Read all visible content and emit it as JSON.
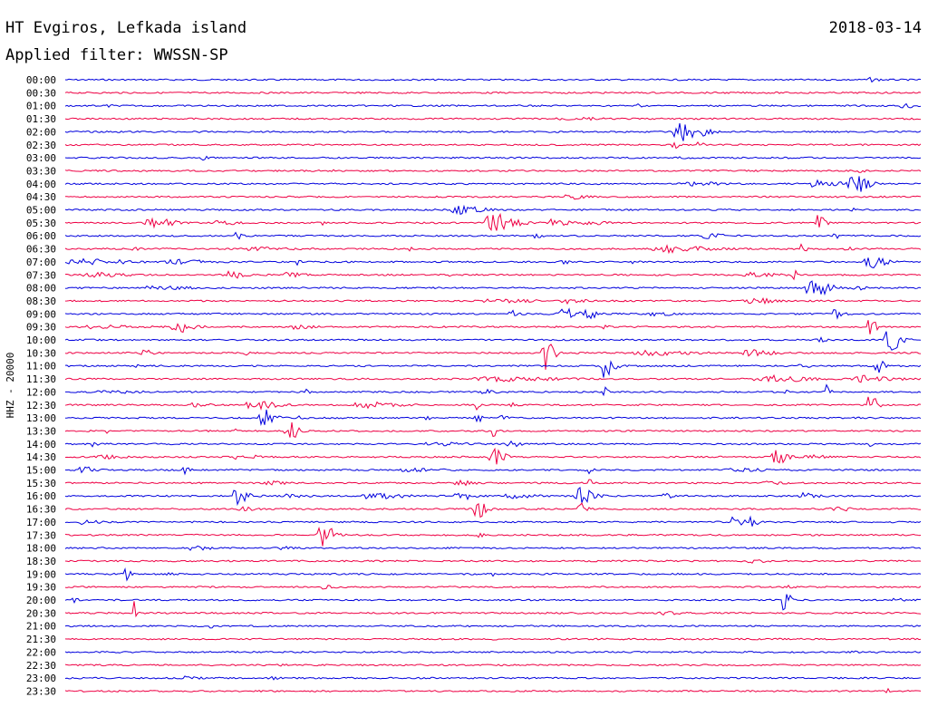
{
  "header": {
    "station": "HT Evgiros, Lefkada island",
    "date": "2018-03-14",
    "filter": "Applied filter: WWSSN-SP"
  },
  "channel_label": "HHZ - 20000",
  "colors": {
    "trace_a": "#0000dd",
    "trace_b": "#ee0044"
  },
  "traces": [
    {
      "time": "00:00",
      "events": [
        {
          "t": 0.94,
          "amp": 0.25,
          "w": 0.012
        }
      ]
    },
    {
      "time": "00:30",
      "events": []
    },
    {
      "time": "01:00",
      "events": [
        {
          "t": 0.05,
          "amp": 0.2,
          "w": 0.005
        },
        {
          "t": 0.67,
          "amp": 0.3,
          "w": 0.004
        },
        {
          "t": 0.98,
          "amp": 0.3,
          "w": 0.02
        }
      ]
    },
    {
      "time": "01:30",
      "events": [
        {
          "t": 0.58,
          "amp": 0.15,
          "w": 0.02
        },
        {
          "t": 0.61,
          "amp": 0.15,
          "w": 0.015
        }
      ]
    },
    {
      "time": "02:00",
      "events": [
        {
          "t": 0.72,
          "amp": 1.5,
          "w": 0.03
        }
      ]
    },
    {
      "time": "02:30",
      "events": [
        {
          "t": 0.71,
          "amp": 0.6,
          "w": 0.008
        },
        {
          "t": 0.74,
          "amp": 0.3,
          "w": 0.01
        }
      ]
    },
    {
      "time": "03:00",
      "events": [
        {
          "t": 0.16,
          "amp": 0.35,
          "w": 0.006
        },
        {
          "t": 0.72,
          "amp": 0.1,
          "w": 0.01
        }
      ]
    },
    {
      "time": "03:30",
      "events": [
        {
          "t": 0.31,
          "amp": 0.1,
          "w": 0.005
        },
        {
          "t": 0.93,
          "amp": 0.25,
          "w": 0.01
        }
      ]
    },
    {
      "time": "04:00",
      "events": [
        {
          "t": 0.73,
          "amp": 0.25,
          "w": 0.04
        },
        {
          "t": 0.88,
          "amp": 0.7,
          "w": 0.03
        },
        {
          "t": 0.92,
          "amp": 1.5,
          "w": 0.02
        }
      ]
    },
    {
      "time": "04:30",
      "events": [
        {
          "t": 0.59,
          "amp": 0.35,
          "w": 0.02
        }
      ]
    },
    {
      "time": "05:00",
      "events": [
        {
          "t": 0.46,
          "amp": 0.7,
          "w": 0.03
        },
        {
          "t": 0.92,
          "amp": 0.4,
          "w": 0.01
        }
      ]
    },
    {
      "time": "05:30",
      "events": [
        {
          "t": 0.1,
          "amp": 1.2,
          "w": 0.025
        },
        {
          "t": 0.18,
          "amp": 0.3,
          "w": 0.02
        },
        {
          "t": 0.3,
          "amp": 0.3,
          "w": 0.005
        },
        {
          "t": 0.5,
          "amp": 1.4,
          "w": 0.03
        },
        {
          "t": 0.57,
          "amp": 0.5,
          "w": 0.02
        },
        {
          "t": 0.61,
          "amp": 0.3,
          "w": 0.02
        },
        {
          "t": 0.88,
          "amp": 1.3,
          "w": 0.01
        }
      ]
    },
    {
      "time": "06:00",
      "events": [
        {
          "t": 0.2,
          "amp": 0.6,
          "w": 0.006
        },
        {
          "t": 0.55,
          "amp": 0.3,
          "w": 0.01
        },
        {
          "t": 0.75,
          "amp": 0.5,
          "w": 0.02
        },
        {
          "t": 0.9,
          "amp": 0.3,
          "w": 0.01
        }
      ]
    },
    {
      "time": "06:30",
      "events": [
        {
          "t": 0.08,
          "amp": 0.3,
          "w": 0.006
        },
        {
          "t": 0.22,
          "amp": 0.2,
          "w": 0.05
        },
        {
          "t": 0.4,
          "amp": 0.3,
          "w": 0.005
        },
        {
          "t": 0.7,
          "amp": 0.5,
          "w": 0.05
        },
        {
          "t": 0.86,
          "amp": 0.9,
          "w": 0.006
        },
        {
          "t": 0.91,
          "amp": 0.4,
          "w": 0.01
        }
      ]
    },
    {
      "time": "07:00",
      "events": [
        {
          "t": 0.02,
          "amp": 0.4,
          "w": 0.06
        },
        {
          "t": 0.13,
          "amp": 0.3,
          "w": 0.04
        },
        {
          "t": 0.27,
          "amp": 0.4,
          "w": 0.006
        },
        {
          "t": 0.58,
          "amp": 0.3,
          "w": 0.01
        },
        {
          "t": 0.66,
          "amp": 0.2,
          "w": 0.01
        },
        {
          "t": 0.94,
          "amp": 0.9,
          "w": 0.02
        }
      ]
    },
    {
      "time": "07:30",
      "events": [
        {
          "t": 0.03,
          "amp": 0.3,
          "w": 0.04
        },
        {
          "t": 0.19,
          "amp": 0.6,
          "w": 0.02
        },
        {
          "t": 0.26,
          "amp": 0.3,
          "w": 0.02
        },
        {
          "t": 0.45,
          "amp": 0.2,
          "w": 0.006
        },
        {
          "t": 0.8,
          "amp": 0.3,
          "w": 0.03
        },
        {
          "t": 0.85,
          "amp": 0.9,
          "w": 0.006
        }
      ]
    },
    {
      "time": "08:00",
      "events": [
        {
          "t": 0.1,
          "amp": 0.2,
          "w": 0.05
        },
        {
          "t": 0.87,
          "amp": 1.6,
          "w": 0.025
        },
        {
          "t": 0.92,
          "amp": 0.3,
          "w": 0.02
        }
      ]
    },
    {
      "time": "08:30",
      "events": [
        {
          "t": 0.5,
          "amp": 0.2,
          "w": 0.05
        },
        {
          "t": 0.58,
          "amp": 0.4,
          "w": 0.03
        },
        {
          "t": 0.8,
          "amp": 0.4,
          "w": 0.03
        }
      ]
    },
    {
      "time": "09:00",
      "events": [
        {
          "t": 0.52,
          "amp": 0.6,
          "w": 0.01
        },
        {
          "t": 0.58,
          "amp": 0.8,
          "w": 0.02
        },
        {
          "t": 0.61,
          "amp": 1.2,
          "w": 0.01
        },
        {
          "t": 0.69,
          "amp": 0.3,
          "w": 0.02
        },
        {
          "t": 0.9,
          "amp": 1.0,
          "w": 0.01
        }
      ]
    },
    {
      "time": "09:30",
      "events": [
        {
          "t": 0.03,
          "amp": 0.2,
          "w": 0.06
        },
        {
          "t": 0.13,
          "amp": 1.4,
          "w": 0.02
        },
        {
          "t": 0.27,
          "amp": 0.3,
          "w": 0.02
        },
        {
          "t": 0.63,
          "amp": 0.3,
          "w": 0.005
        },
        {
          "t": 0.94,
          "amp": 1.2,
          "w": 0.012
        }
      ]
    },
    {
      "time": "10:00",
      "events": [
        {
          "t": 0.88,
          "amp": 0.5,
          "w": 0.01
        },
        {
          "t": 0.96,
          "amp": 1.8,
          "w": 0.02
        }
      ]
    },
    {
      "time": "10:30",
      "events": [
        {
          "t": 0.09,
          "amp": 0.4,
          "w": 0.015
        },
        {
          "t": 0.21,
          "amp": 0.3,
          "w": 0.005
        },
        {
          "t": 0.56,
          "amp": 2.5,
          "w": 0.012
        },
        {
          "t": 0.68,
          "amp": 0.3,
          "w": 0.06
        },
        {
          "t": 0.8,
          "amp": 0.4,
          "w": 0.03
        }
      ]
    },
    {
      "time": "11:00",
      "events": [
        {
          "t": 0.08,
          "amp": 0.3,
          "w": 0.005
        },
        {
          "t": 0.63,
          "amp": 2.5,
          "w": 0.012
        },
        {
          "t": 0.86,
          "amp": 0.4,
          "w": 0.01
        },
        {
          "t": 0.95,
          "amp": 1.0,
          "w": 0.01
        }
      ]
    },
    {
      "time": "11:30",
      "events": [
        {
          "t": 0.5,
          "amp": 0.3,
          "w": 0.08
        },
        {
          "t": 0.82,
          "amp": 0.5,
          "w": 0.05
        },
        {
          "t": 0.93,
          "amp": 0.5,
          "w": 0.04
        }
      ]
    },
    {
      "time": "12:00",
      "events": [
        {
          "t": 0.05,
          "amp": 0.15,
          "w": 0.04
        },
        {
          "t": 0.28,
          "amp": 0.4,
          "w": 0.006
        },
        {
          "t": 0.49,
          "amp": 0.3,
          "w": 0.015
        },
        {
          "t": 0.63,
          "amp": 1.2,
          "w": 0.006
        },
        {
          "t": 0.84,
          "amp": 0.3,
          "w": 0.005
        },
        {
          "t": 0.89,
          "amp": 1.0,
          "w": 0.006
        }
      ]
    },
    {
      "time": "12:30",
      "events": [
        {
          "t": 0.15,
          "amp": 0.3,
          "w": 0.02
        },
        {
          "t": 0.22,
          "amp": 0.6,
          "w": 0.03
        },
        {
          "t": 0.35,
          "amp": 0.4,
          "w": 0.04
        },
        {
          "t": 0.48,
          "amp": 0.7,
          "w": 0.005
        },
        {
          "t": 0.52,
          "amp": 0.3,
          "w": 0.01
        },
        {
          "t": 0.94,
          "amp": 1.6,
          "w": 0.01
        }
      ]
    },
    {
      "time": "13:00",
      "events": [
        {
          "t": 0.23,
          "amp": 1.6,
          "w": 0.015
        },
        {
          "t": 0.27,
          "amp": 0.5,
          "w": 0.01
        },
        {
          "t": 0.42,
          "amp": 0.2,
          "w": 0.01
        },
        {
          "t": 0.48,
          "amp": 0.8,
          "w": 0.008
        },
        {
          "t": 0.51,
          "amp": 0.3,
          "w": 0.01
        }
      ]
    },
    {
      "time": "13:30",
      "events": [
        {
          "t": 0.05,
          "amp": 0.5,
          "w": 0.005
        },
        {
          "t": 0.2,
          "amp": 0.4,
          "w": 0.005
        },
        {
          "t": 0.26,
          "amp": 1.4,
          "w": 0.015
        },
        {
          "t": 0.5,
          "amp": 0.8,
          "w": 0.005
        }
      ]
    },
    {
      "time": "14:00",
      "events": [
        {
          "t": 0.03,
          "amp": 0.6,
          "w": 0.006
        },
        {
          "t": 0.43,
          "amp": 0.2,
          "w": 0.04
        },
        {
          "t": 0.52,
          "amp": 0.4,
          "w": 0.015
        },
        {
          "t": 0.94,
          "amp": 0.3,
          "w": 0.005
        }
      ]
    },
    {
      "time": "14:30",
      "events": [
        {
          "t": 0.04,
          "amp": 0.2,
          "w": 0.04
        },
        {
          "t": 0.2,
          "amp": 0.3,
          "w": 0.03
        },
        {
          "t": 0.5,
          "amp": 1.2,
          "w": 0.015
        },
        {
          "t": 0.83,
          "amp": 1.4,
          "w": 0.015
        },
        {
          "t": 0.87,
          "amp": 0.3,
          "w": 0.02
        }
      ]
    },
    {
      "time": "15:00",
      "events": [
        {
          "t": 0.02,
          "amp": 0.5,
          "w": 0.015
        },
        {
          "t": 0.14,
          "amp": 0.6,
          "w": 0.008
        },
        {
          "t": 0.4,
          "amp": 0.2,
          "w": 0.04
        },
        {
          "t": 0.61,
          "amp": 0.6,
          "w": 0.008
        },
        {
          "t": 0.78,
          "amp": 0.2,
          "w": 0.04
        }
      ]
    },
    {
      "time": "15:30",
      "events": [
        {
          "t": 0.24,
          "amp": 0.3,
          "w": 0.02
        },
        {
          "t": 0.46,
          "amp": 0.3,
          "w": 0.02
        },
        {
          "t": 0.61,
          "amp": 0.5,
          "w": 0.01
        },
        {
          "t": 0.82,
          "amp": 0.2,
          "w": 0.02
        }
      ]
    },
    {
      "time": "16:00",
      "events": [
        {
          "t": 0.2,
          "amp": 1.3,
          "w": 0.015
        },
        {
          "t": 0.26,
          "amp": 0.3,
          "w": 0.02
        },
        {
          "t": 0.36,
          "amp": 0.4,
          "w": 0.05
        },
        {
          "t": 0.46,
          "amp": 0.6,
          "w": 0.02
        },
        {
          "t": 0.52,
          "amp": 0.3,
          "w": 0.03
        },
        {
          "t": 0.6,
          "amp": 1.2,
          "w": 0.02
        },
        {
          "t": 0.7,
          "amp": 0.4,
          "w": 0.01
        },
        {
          "t": 0.86,
          "amp": 0.4,
          "w": 0.02
        }
      ]
    },
    {
      "time": "16:30",
      "events": [
        {
          "t": 0.2,
          "amp": 0.3,
          "w": 0.02
        },
        {
          "t": 0.48,
          "amp": 1.3,
          "w": 0.015
        },
        {
          "t": 0.6,
          "amp": 1.0,
          "w": 0.01
        },
        {
          "t": 0.9,
          "amp": 0.3,
          "w": 0.02
        }
      ]
    },
    {
      "time": "17:00",
      "events": [
        {
          "t": 0.02,
          "amp": 0.3,
          "w": 0.02
        },
        {
          "t": 0.78,
          "amp": 0.7,
          "w": 0.015
        },
        {
          "t": 0.8,
          "amp": 1.6,
          "w": 0.01
        }
      ]
    },
    {
      "time": "17:30",
      "events": [
        {
          "t": 0.3,
          "amp": 1.8,
          "w": 0.02
        },
        {
          "t": 0.48,
          "amp": 0.3,
          "w": 0.01
        }
      ]
    },
    {
      "time": "18:00",
      "events": [
        {
          "t": 0.15,
          "amp": 0.3,
          "w": 0.02
        },
        {
          "t": 0.25,
          "amp": 0.2,
          "w": 0.02
        }
      ]
    },
    {
      "time": "18:30",
      "events": [
        {
          "t": 0.8,
          "amp": 0.2,
          "w": 0.02
        }
      ]
    },
    {
      "time": "19:00",
      "events": [
        {
          "t": 0.07,
          "amp": 1.3,
          "w": 0.006
        },
        {
          "t": 0.12,
          "amp": 0.2,
          "w": 0.01
        },
        {
          "t": 0.5,
          "amp": 0.2,
          "w": 0.005
        }
      ]
    },
    {
      "time": "19:30",
      "events": [
        {
          "t": 0.3,
          "amp": 0.3,
          "w": 0.015
        },
        {
          "t": 0.84,
          "amp": 0.2,
          "w": 0.01
        }
      ]
    },
    {
      "time": "20:00",
      "events": [
        {
          "t": 0.01,
          "amp": 0.5,
          "w": 0.006
        },
        {
          "t": 0.84,
          "amp": 1.8,
          "w": 0.008
        },
        {
          "t": 0.97,
          "amp": 0.2,
          "w": 0.01
        }
      ]
    },
    {
      "time": "20:30",
      "events": [
        {
          "t": 0.08,
          "amp": 2.4,
          "w": 0.004
        },
        {
          "t": 0.7,
          "amp": 0.2,
          "w": 0.02
        }
      ]
    },
    {
      "time": "21:00",
      "events": [
        {
          "t": 0.17,
          "amp": 0.3,
          "w": 0.004
        }
      ]
    },
    {
      "time": "21:30",
      "events": [
        {
          "t": 0.5,
          "amp": 0.15,
          "w": 0.005
        }
      ]
    },
    {
      "time": "22:00",
      "events": [
        {
          "t": 0.92,
          "amp": 0.5,
          "w": 0.006
        }
      ]
    },
    {
      "time": "22:30",
      "events": [
        {
          "t": 0.25,
          "amp": 0.15,
          "w": 0.01
        }
      ]
    },
    {
      "time": "23:00",
      "events": [
        {
          "t": 0.14,
          "amp": 0.2,
          "w": 0.02
        },
        {
          "t": 0.24,
          "amp": 0.2,
          "w": 0.01
        }
      ]
    },
    {
      "time": "23:30",
      "events": [
        {
          "t": 0.96,
          "amp": 0.3,
          "w": 0.005
        }
      ]
    }
  ]
}
